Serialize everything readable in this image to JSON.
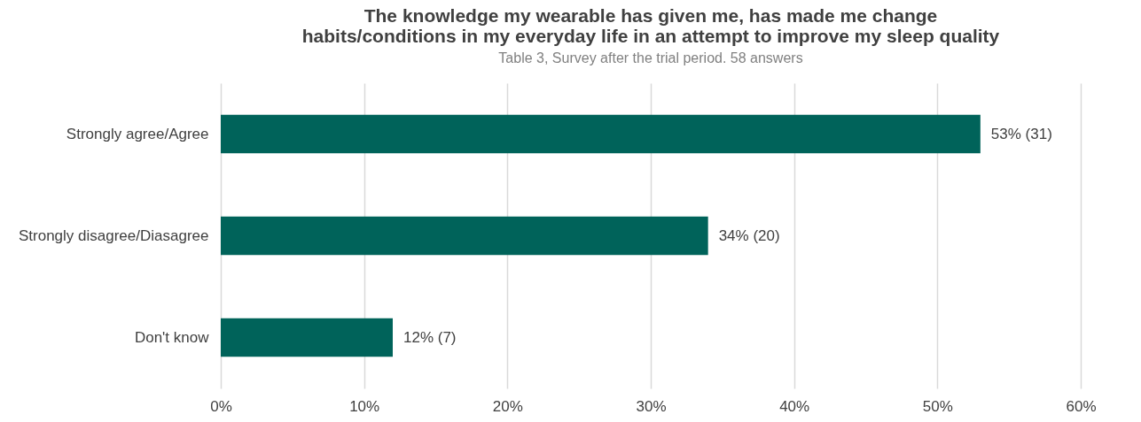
{
  "chart_data": {
    "type": "bar",
    "orientation": "horizontal",
    "title": [
      "The knowledge my wearable has given me, has made me change",
      "habits/conditions in my everyday life in an attempt to improve my sleep quality"
    ],
    "annotations": [
      "Table 3, Survey after the trial period. 58 answers"
    ],
    "categories": [
      "Strongly agree/Agree",
      "Strongly disagree/Diasagree",
      "Don't know"
    ],
    "values": [
      53,
      34,
      12
    ],
    "color": "#00635a",
    "value_labels": [
      "53% (31)",
      "34% (20)",
      "12% (7)"
    ],
    "xlim": [
      0,
      60
    ],
    "xticks": [
      {
        "value": 0,
        "label": "0%"
      },
      {
        "value": 10,
        "label": "10%"
      },
      {
        "value": 20,
        "label": "20%"
      },
      {
        "value": 30,
        "label": "30%"
      },
      {
        "value": 40,
        "label": "40%"
      },
      {
        "value": 50,
        "label": "50%"
      },
      {
        "value": 60,
        "label": "60%"
      }
    ],
    "grid": "x"
  }
}
